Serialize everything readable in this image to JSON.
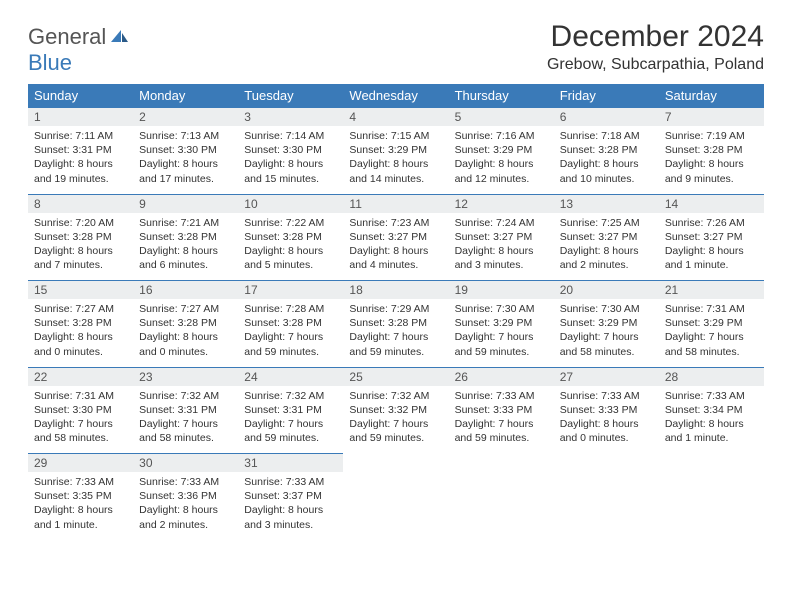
{
  "brand": {
    "word1": "General",
    "word2": "Blue"
  },
  "title": "December 2024",
  "location": "Grebow, Subcarpathia, Poland",
  "colors": {
    "header_bg": "#3a7ab8",
    "daynum_bg": "#eceeef",
    "border": "#3a7ab8",
    "text": "#333333"
  },
  "daysOfWeek": [
    "Sunday",
    "Monday",
    "Tuesday",
    "Wednesday",
    "Thursday",
    "Friday",
    "Saturday"
  ],
  "weeks": [
    [
      {
        "n": "1",
        "sr": "7:11 AM",
        "ss": "3:31 PM",
        "dl": "8 hours and 19 minutes."
      },
      {
        "n": "2",
        "sr": "7:13 AM",
        "ss": "3:30 PM",
        "dl": "8 hours and 17 minutes."
      },
      {
        "n": "3",
        "sr": "7:14 AM",
        "ss": "3:30 PM",
        "dl": "8 hours and 15 minutes."
      },
      {
        "n": "4",
        "sr": "7:15 AM",
        "ss": "3:29 PM",
        "dl": "8 hours and 14 minutes."
      },
      {
        "n": "5",
        "sr": "7:16 AM",
        "ss": "3:29 PM",
        "dl": "8 hours and 12 minutes."
      },
      {
        "n": "6",
        "sr": "7:18 AM",
        "ss": "3:28 PM",
        "dl": "8 hours and 10 minutes."
      },
      {
        "n": "7",
        "sr": "7:19 AM",
        "ss": "3:28 PM",
        "dl": "8 hours and 9 minutes."
      }
    ],
    [
      {
        "n": "8",
        "sr": "7:20 AM",
        "ss": "3:28 PM",
        "dl": "8 hours and 7 minutes."
      },
      {
        "n": "9",
        "sr": "7:21 AM",
        "ss": "3:28 PM",
        "dl": "8 hours and 6 minutes."
      },
      {
        "n": "10",
        "sr": "7:22 AM",
        "ss": "3:28 PM",
        "dl": "8 hours and 5 minutes."
      },
      {
        "n": "11",
        "sr": "7:23 AM",
        "ss": "3:27 PM",
        "dl": "8 hours and 4 minutes."
      },
      {
        "n": "12",
        "sr": "7:24 AM",
        "ss": "3:27 PM",
        "dl": "8 hours and 3 minutes."
      },
      {
        "n": "13",
        "sr": "7:25 AM",
        "ss": "3:27 PM",
        "dl": "8 hours and 2 minutes."
      },
      {
        "n": "14",
        "sr": "7:26 AM",
        "ss": "3:27 PM",
        "dl": "8 hours and 1 minute."
      }
    ],
    [
      {
        "n": "15",
        "sr": "7:27 AM",
        "ss": "3:28 PM",
        "dl": "8 hours and 0 minutes."
      },
      {
        "n": "16",
        "sr": "7:27 AM",
        "ss": "3:28 PM",
        "dl": "8 hours and 0 minutes."
      },
      {
        "n": "17",
        "sr": "7:28 AM",
        "ss": "3:28 PM",
        "dl": "7 hours and 59 minutes."
      },
      {
        "n": "18",
        "sr": "7:29 AM",
        "ss": "3:28 PM",
        "dl": "7 hours and 59 minutes."
      },
      {
        "n": "19",
        "sr": "7:30 AM",
        "ss": "3:29 PM",
        "dl": "7 hours and 59 minutes."
      },
      {
        "n": "20",
        "sr": "7:30 AM",
        "ss": "3:29 PM",
        "dl": "7 hours and 58 minutes."
      },
      {
        "n": "21",
        "sr": "7:31 AM",
        "ss": "3:29 PM",
        "dl": "7 hours and 58 minutes."
      }
    ],
    [
      {
        "n": "22",
        "sr": "7:31 AM",
        "ss": "3:30 PM",
        "dl": "7 hours and 58 minutes."
      },
      {
        "n": "23",
        "sr": "7:32 AM",
        "ss": "3:31 PM",
        "dl": "7 hours and 58 minutes."
      },
      {
        "n": "24",
        "sr": "7:32 AM",
        "ss": "3:31 PM",
        "dl": "7 hours and 59 minutes."
      },
      {
        "n": "25",
        "sr": "7:32 AM",
        "ss": "3:32 PM",
        "dl": "7 hours and 59 minutes."
      },
      {
        "n": "26",
        "sr": "7:33 AM",
        "ss": "3:33 PM",
        "dl": "7 hours and 59 minutes."
      },
      {
        "n": "27",
        "sr": "7:33 AM",
        "ss": "3:33 PM",
        "dl": "8 hours and 0 minutes."
      },
      {
        "n": "28",
        "sr": "7:33 AM",
        "ss": "3:34 PM",
        "dl": "8 hours and 1 minute."
      }
    ],
    [
      {
        "n": "29",
        "sr": "7:33 AM",
        "ss": "3:35 PM",
        "dl": "8 hours and 1 minute."
      },
      {
        "n": "30",
        "sr": "7:33 AM",
        "ss": "3:36 PM",
        "dl": "8 hours and 2 minutes."
      },
      {
        "n": "31",
        "sr": "7:33 AM",
        "ss": "3:37 PM",
        "dl": "8 hours and 3 minutes."
      },
      null,
      null,
      null,
      null
    ]
  ],
  "labels": {
    "sunrise": "Sunrise: ",
    "sunset": "Sunset: ",
    "daylight": "Daylight: "
  }
}
